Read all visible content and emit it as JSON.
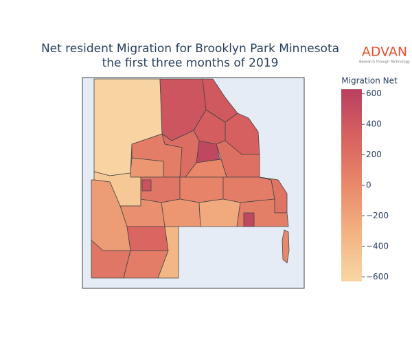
{
  "chart_data": {
    "type": "choropleth",
    "title": "Net resident Migration for Brooklyn Park Minnesota",
    "subtitle": "the first three months of 2019",
    "logo": "ADVAN",
    "logo_tagline": "Research through Technology",
    "colorbar_title": "Migration Net",
    "zlim": [
      -630,
      630
    ],
    "zticks": [
      {
        "value": -600,
        "label": "−600"
      },
      {
        "value": -400,
        "label": "−400"
      },
      {
        "value": -200,
        "label": "−200"
      },
      0,
      200,
      400,
      600
    ],
    "colorscale": [
      "#f8d7a4",
      "#f2b382",
      "#e9896a",
      "#d7625f",
      "#b93f60"
    ],
    "region_values": [
      -600,
      430,
      400,
      330,
      350,
      560,
      200,
      230,
      100,
      -100,
      20,
      -500,
      -150,
      150,
      450,
      50,
      100,
      180,
      -50,
      -100,
      -250,
      80,
      560,
      280,
      -350,
      150,
      100,
      0
    ]
  }
}
